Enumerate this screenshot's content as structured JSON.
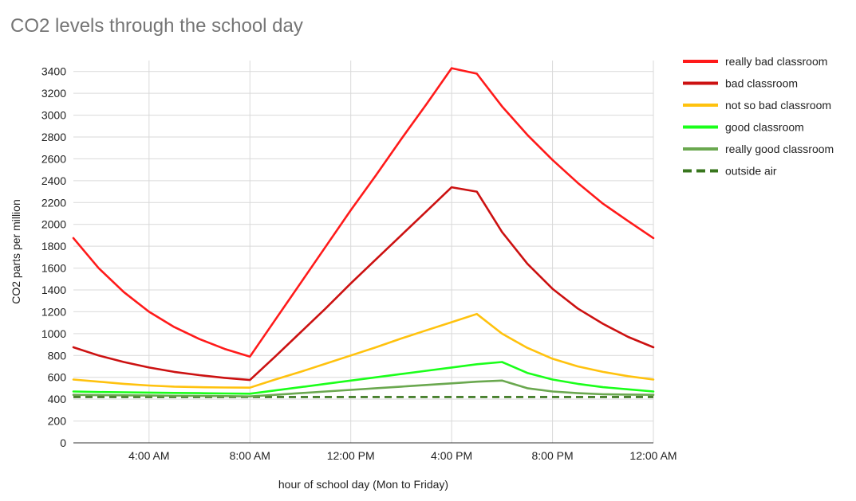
{
  "chart_data": {
    "type": "line",
    "title": "CO2 levels through the school day",
    "xlabel": "hour of school day (Mon to Friday)",
    "ylabel": "CO2 parts per million",
    "ylim": [
      0,
      3500
    ],
    "yticks": [
      0,
      200,
      400,
      600,
      800,
      1000,
      1200,
      1400,
      1600,
      1800,
      2000,
      2200,
      2400,
      2600,
      2800,
      3000,
      3200,
      3400
    ],
    "x": [
      "1:00 AM",
      "2:00 AM",
      "3:00 AM",
      "4:00 AM",
      "5:00 AM",
      "6:00 AM",
      "7:00 AM",
      "8:00 AM",
      "9:00 AM",
      "10:00 AM",
      "11:00 AM",
      "12:00 PM",
      "1:00 PM",
      "2:00 PM",
      "3:00 PM",
      "4:00 PM",
      "5:00 PM",
      "6:00 PM",
      "7:00 PM",
      "8:00 PM",
      "9:00 PM",
      "10:00 PM",
      "11:00 PM",
      "12:00 AM"
    ],
    "xticks": [
      "4:00 AM",
      "8:00 AM",
      "12:00 PM",
      "4:00 PM",
      "8:00 PM",
      "12:00 AM"
    ],
    "grid": true,
    "legend_position": "right",
    "series": [
      {
        "name": "really bad classroom",
        "color": "#ff1a1a",
        "dash": false,
        "values": [
          1875,
          1600,
          1380,
          1200,
          1060,
          950,
          860,
          790,
          1125,
          1460,
          1795,
          2130,
          2450,
          2780,
          3100,
          3430,
          3380,
          3080,
          2820,
          2590,
          2380,
          2190,
          2030,
          1875
        ]
      },
      {
        "name": "bad classroom",
        "color": "#cc1111",
        "dash": false,
        "values": [
          875,
          800,
          740,
          690,
          650,
          620,
          595,
          575,
          790,
          1010,
          1230,
          1460,
          1680,
          1900,
          2120,
          2340,
          2300,
          1930,
          1640,
          1410,
          1230,
          1090,
          970,
          875
        ]
      },
      {
        "name": "not so bad classroom",
        "color": "#ffc20e",
        "dash": false,
        "values": [
          580,
          560,
          540,
          525,
          515,
          510,
          507,
          505,
          580,
          650,
          725,
          800,
          875,
          955,
          1030,
          1105,
          1180,
          1000,
          870,
          770,
          700,
          650,
          610,
          580
        ]
      },
      {
        "name": "good classroom",
        "color": "#1aff1a",
        "dash": false,
        "values": [
          470,
          465,
          463,
          460,
          457,
          455,
          452,
          450,
          480,
          510,
          540,
          570,
          600,
          630,
          660,
          690,
          720,
          740,
          640,
          580,
          540,
          510,
          490,
          470
        ]
      },
      {
        "name": "really good classroom",
        "color": "#6aa84f",
        "dash": false,
        "values": [
          440,
          437,
          435,
          433,
          431,
          430,
          428,
          425,
          440,
          455,
          470,
          485,
          500,
          515,
          530,
          545,
          560,
          570,
          500,
          470,
          455,
          445,
          442,
          440
        ]
      },
      {
        "name": "outside air",
        "color": "#38761d",
        "dash": true,
        "values": [
          420,
          420,
          420,
          420,
          420,
          420,
          420,
          420,
          420,
          420,
          420,
          420,
          420,
          420,
          420,
          420,
          420,
          420,
          420,
          420,
          420,
          420,
          420,
          420
        ]
      }
    ]
  }
}
